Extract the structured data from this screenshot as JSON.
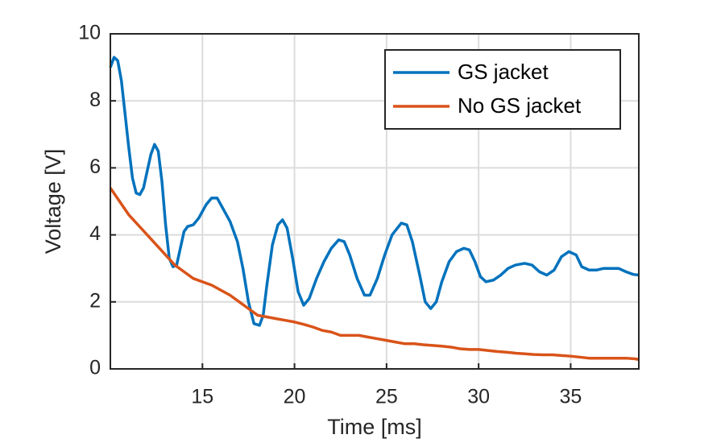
{
  "chart_data": {
    "type": "line",
    "x_label": "Time [ms]",
    "y_label": "Voltage [V]",
    "xlim": [
      10,
      38.7
    ],
    "ylim": [
      0,
      10
    ],
    "xticks": [
      15,
      20,
      25,
      30,
      35
    ],
    "yticks": [
      0,
      2,
      4,
      6,
      8,
      10
    ],
    "grid": true,
    "legend_position": "northeast",
    "series": [
      {
        "name": "GS jacket",
        "color": "#0072BD",
        "x": [
          10.0,
          10.2,
          10.4,
          10.6,
          10.8,
          11.0,
          11.2,
          11.4,
          11.6,
          11.8,
          12.0,
          12.2,
          12.4,
          12.6,
          12.8,
          13.0,
          13.2,
          13.4,
          13.6,
          13.8,
          14.0,
          14.2,
          14.5,
          14.8,
          15.2,
          15.5,
          15.8,
          16.1,
          16.5,
          16.9,
          17.2,
          17.5,
          17.8,
          18.1,
          18.3,
          18.5,
          18.8,
          19.1,
          19.35,
          19.6,
          19.9,
          20.2,
          20.5,
          20.8,
          21.2,
          21.6,
          22.0,
          22.4,
          22.7,
          23.0,
          23.4,
          23.8,
          24.1,
          24.5,
          24.9,
          25.3,
          25.8,
          26.1,
          26.4,
          26.8,
          27.1,
          27.4,
          27.7,
          28.0,
          28.4,
          28.8,
          29.2,
          29.5,
          29.8,
          30.1,
          30.4,
          30.8,
          31.2,
          31.6,
          32.0,
          32.5,
          32.9,
          33.3,
          33.7,
          34.1,
          34.5,
          34.9,
          35.3,
          35.6,
          36.0,
          36.4,
          36.8,
          37.2,
          37.6,
          38.0,
          38.4,
          38.7
        ],
        "values": [
          9.0,
          9.3,
          9.2,
          8.6,
          7.6,
          6.6,
          5.7,
          5.25,
          5.2,
          5.4,
          5.9,
          6.4,
          6.7,
          6.5,
          5.6,
          4.3,
          3.3,
          3.05,
          3.1,
          3.6,
          4.1,
          4.25,
          4.3,
          4.5,
          4.9,
          5.1,
          5.1,
          4.8,
          4.4,
          3.8,
          3.0,
          2.0,
          1.35,
          1.3,
          1.6,
          2.5,
          3.7,
          4.3,
          4.45,
          4.2,
          3.3,
          2.3,
          1.9,
          2.1,
          2.7,
          3.2,
          3.6,
          3.85,
          3.8,
          3.4,
          2.7,
          2.2,
          2.2,
          2.7,
          3.4,
          4.0,
          4.35,
          4.3,
          3.8,
          2.8,
          2.0,
          1.8,
          2.0,
          2.6,
          3.2,
          3.5,
          3.6,
          3.55,
          3.2,
          2.75,
          2.6,
          2.65,
          2.8,
          3.0,
          3.1,
          3.15,
          3.1,
          2.9,
          2.8,
          2.95,
          3.35,
          3.5,
          3.4,
          3.05,
          2.95,
          2.95,
          3.0,
          3.0,
          3.0,
          2.9,
          2.82,
          2.8
        ]
      },
      {
        "name": "No GS jacket",
        "color": "#D95319",
        "x": [
          10.0,
          10.5,
          11.0,
          11.5,
          12.0,
          12.5,
          13.0,
          13.5,
          14.0,
          14.5,
          15.0,
          15.5,
          16.0,
          16.5,
          17.0,
          17.5,
          18.0,
          18.5,
          19.0,
          19.5,
          20.0,
          20.5,
          21.0,
          21.5,
          22.0,
          22.5,
          23.0,
          23.5,
          24.0,
          24.5,
          25.0,
          25.5,
          26.0,
          26.5,
          27.0,
          27.5,
          28.0,
          28.5,
          29.0,
          29.5,
          30.0,
          30.5,
          31.0,
          31.5,
          32.0,
          32.5,
          33.0,
          33.5,
          34.0,
          34.5,
          35.0,
          35.5,
          36.0,
          36.5,
          37.0,
          37.5,
          38.0,
          38.5,
          38.7
        ],
        "values": [
          5.4,
          5.0,
          4.6,
          4.3,
          4.0,
          3.7,
          3.4,
          3.1,
          2.9,
          2.7,
          2.6,
          2.5,
          2.35,
          2.2,
          2.0,
          1.8,
          1.6,
          1.55,
          1.5,
          1.45,
          1.4,
          1.33,
          1.25,
          1.15,
          1.1,
          1.0,
          1.0,
          1.0,
          0.95,
          0.9,
          0.85,
          0.8,
          0.75,
          0.75,
          0.72,
          0.7,
          0.68,
          0.65,
          0.6,
          0.58,
          0.58,
          0.55,
          0.52,
          0.5,
          0.47,
          0.45,
          0.43,
          0.42,
          0.42,
          0.4,
          0.38,
          0.35,
          0.32,
          0.32,
          0.32,
          0.32,
          0.32,
          0.3,
          0.28
        ]
      }
    ]
  }
}
